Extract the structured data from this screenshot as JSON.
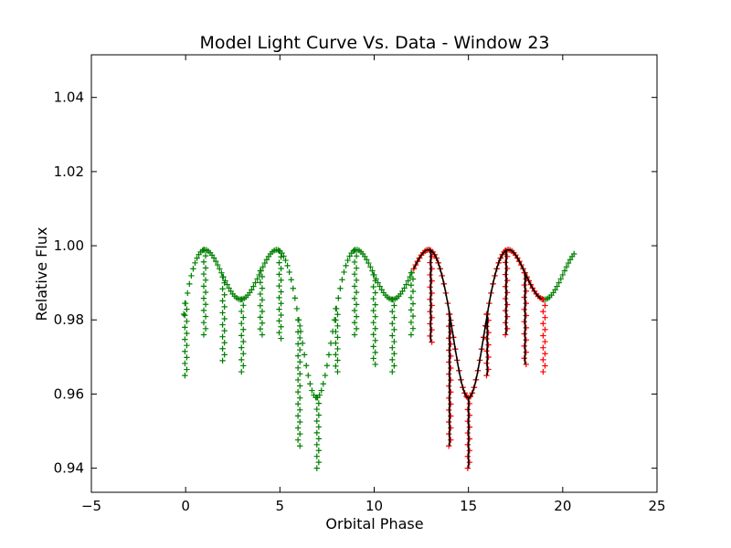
{
  "chart_data": {
    "type": "scatter",
    "title": "Model Light Curve Vs. Data - Window 23",
    "xlabel": "Orbital Phase",
    "ylabel": "Relative Flux",
    "xlim": [
      -5,
      25
    ],
    "ylim": [
      0.9335,
      1.0515
    ],
    "xticks": [
      "−5",
      "0",
      "5",
      "10",
      "15",
      "20",
      "25"
    ],
    "yticks": [
      "0.94",
      "0.96",
      "0.98",
      "1.00",
      "1.02",
      "1.04"
    ],
    "grid": false,
    "legend": "none",
    "curve": {
      "period": 8.05,
      "max_flux": 0.9995,
      "secondary_min": 0.9855,
      "primary_min": 0.959,
      "primary_min_phase": 6.95
    },
    "series": [
      {
        "marker": "+",
        "color": "#008000",
        "x_range": [
          -0.1,
          20.6
        ],
        "step": 0.1,
        "dip_phases": [
          0,
          1,
          2,
          3,
          4,
          5,
          6,
          7,
          8,
          9,
          10,
          11,
          12
        ],
        "dip_depth": [
          0.965,
          0.976,
          0.969,
          0.966,
          0.976,
          0.975,
          0.946,
          0.94,
          0.966,
          0.976,
          0.968,
          0.966,
          0.976
        ]
      },
      {
        "marker": "+",
        "color": "#ff0000",
        "x_range": [
          12.1,
          18.9
        ],
        "step": 0.1,
        "dip_phases": [
          13,
          14,
          15,
          16,
          17,
          18,
          19
        ],
        "dip_depth": [
          0.974,
          0.946,
          0.94,
          0.965,
          0.976,
          0.968,
          0.966
        ]
      },
      {
        "type": "line",
        "color": "#000000",
        "x_range": [
          12.1,
          18.9
        ],
        "dip_phases": [
          13,
          14,
          15,
          16,
          17,
          18,
          19
        ],
        "dip_depth": [
          0.974,
          0.946,
          0.94,
          0.965,
          0.976,
          0.968,
          0.966
        ]
      }
    ]
  }
}
